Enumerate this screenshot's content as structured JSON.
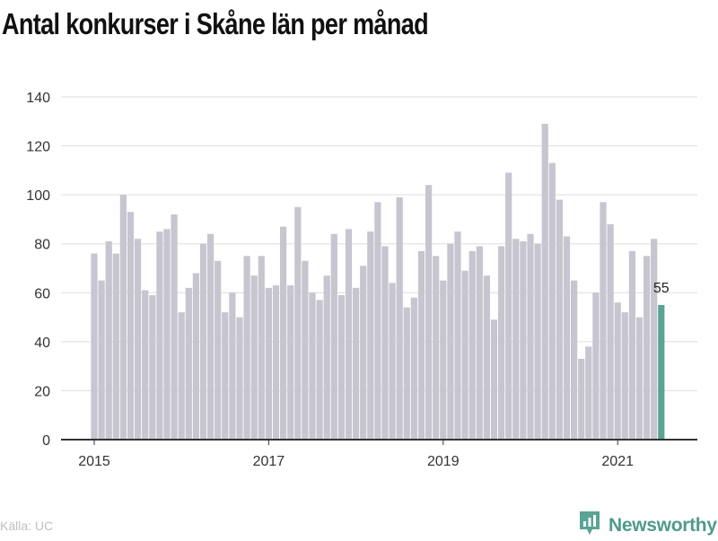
{
  "title": "Antal konkurser i Skåne län per månad",
  "source": "Källa: UC",
  "brand": {
    "name": "Newsworthy",
    "icon": "newsworthy-logo-icon"
  },
  "colors": {
    "bar": "#c6c5d0",
    "highlight": "#5aa395",
    "grid": "#dddddd",
    "axis": "#333333"
  },
  "chart_data": {
    "type": "bar",
    "x_ticks": [
      "2015",
      "2017",
      "2019",
      "2021"
    ],
    "y_ticks": [
      0,
      20,
      40,
      60,
      80,
      100,
      120,
      140
    ],
    "ylim": [
      0,
      140
    ],
    "start": "2015-01",
    "values": [
      76,
      65,
      81,
      76,
      100,
      93,
      82,
      61,
      59,
      85,
      86,
      92,
      52,
      62,
      68,
      80,
      84,
      73,
      52,
      60,
      50,
      75,
      67,
      75,
      62,
      63,
      87,
      63,
      95,
      73,
      60,
      57,
      67,
      84,
      59,
      86,
      62,
      71,
      85,
      97,
      79,
      64,
      99,
      54,
      58,
      77,
      104,
      75,
      65,
      80,
      85,
      69,
      77,
      79,
      67,
      49,
      79,
      109,
      82,
      81,
      84,
      80,
      129,
      113,
      98,
      83,
      65,
      33,
      38,
      60,
      97,
      88,
      56,
      52,
      77,
      50,
      75,
      82,
      55
    ],
    "highlight_last": true,
    "last_value_label": "55",
    "grid": true
  }
}
